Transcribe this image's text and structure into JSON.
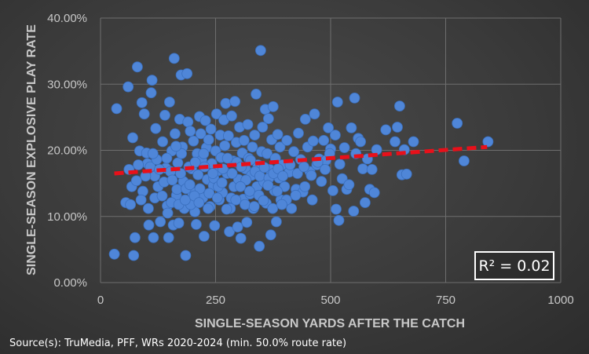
{
  "chart_data": {
    "type": "scatter",
    "title": "",
    "xlabel": "SINGLE-SEASON YARDS AFTER THE CATCH",
    "ylabel": "SINGLE-SEASON EXPLOSIVE PLAY RATE",
    "xlim": [
      0,
      1000
    ],
    "ylim": [
      0,
      0.4
    ],
    "x_ticks": [
      0,
      250,
      500,
      750,
      1000
    ],
    "x_tick_labels": [
      "0",
      "250",
      "500",
      "750",
      "1000"
    ],
    "y_ticks": [
      0,
      0.1,
      0.2,
      0.3,
      0.4
    ],
    "y_tick_labels": [
      "0.00%",
      "10.00%",
      "20.00%",
      "30.00%",
      "40.00%"
    ],
    "grid": true,
    "point_color": "#4f86d8",
    "trendline": {
      "x": [
        30,
        840
      ],
      "y": [
        0.165,
        0.205
      ],
      "color": "#e8101a",
      "style": "dashed"
    },
    "r_squared_label": "R² = 0.02",
    "series": [
      {
        "name": "WRs 2020-2024",
        "points": [
          [
            30,
            0.043
          ],
          [
            35,
            0.263
          ],
          [
            55,
            0.121
          ],
          [
            60,
            0.296
          ],
          [
            65,
            0.118
          ],
          [
            68,
            0.145
          ],
          [
            70,
            0.219
          ],
          [
            72,
            0.041
          ],
          [
            75,
            0.068
          ],
          [
            80,
            0.326
          ],
          [
            85,
            0.199
          ],
          [
            90,
            0.272
          ],
          [
            95,
            0.255
          ],
          [
            100,
            0.196
          ],
          [
            102,
            0.18
          ],
          [
            105,
            0.087
          ],
          [
            110,
            0.287
          ],
          [
            112,
            0.306
          ],
          [
            115,
            0.068
          ],
          [
            118,
            0.161
          ],
          [
            120,
            0.233
          ],
          [
            125,
            0.145
          ],
          [
            130,
            0.092
          ],
          [
            135,
            0.213
          ],
          [
            140,
            0.253
          ],
          [
            142,
            0.173
          ],
          [
            145,
            0.116
          ],
          [
            148,
            0.068
          ],
          [
            150,
            0.273
          ],
          [
            155,
            0.199
          ],
          [
            158,
            0.087
          ],
          [
            160,
            0.339
          ],
          [
            162,
            0.225
          ],
          [
            165,
            0.132
          ],
          [
            168,
            0.181
          ],
          [
            170,
            0.09
          ],
          [
            172,
            0.247
          ],
          [
            175,
            0.314
          ],
          [
            178,
            0.205
          ],
          [
            180,
            0.153
          ],
          [
            182,
            0.112
          ],
          [
            185,
            0.041
          ],
          [
            188,
            0.316
          ],
          [
            190,
            0.243
          ],
          [
            195,
            0.229
          ],
          [
            198,
            0.172
          ],
          [
            200,
            0.136
          ],
          [
            202,
            0.214
          ],
          [
            205,
            0.107
          ],
          [
            208,
            0.088
          ],
          [
            210,
            0.195
          ],
          [
            212,
            0.163
          ],
          [
            215,
            0.251
          ],
          [
            218,
            0.225
          ],
          [
            220,
            0.185
          ],
          [
            222,
            0.128
          ],
          [
            225,
            0.07
          ],
          [
            228,
            0.245
          ],
          [
            230,
            0.204
          ],
          [
            232,
            0.156
          ],
          [
            235,
            0.216
          ],
          [
            238,
            0.115
          ],
          [
            240,
            0.232
          ],
          [
            242,
            0.18
          ],
          [
            245,
            0.147
          ],
          [
            248,
            0.086
          ],
          [
            250,
            0.199
          ],
          [
            252,
            0.255
          ],
          [
            255,
            0.169
          ],
          [
            258,
            0.125
          ],
          [
            260,
            0.223
          ],
          [
            262,
            0.189
          ],
          [
            265,
            0.136
          ],
          [
            268,
            0.246
          ],
          [
            270,
            0.207
          ],
          [
            272,
            0.271
          ],
          [
            275,
            0.165
          ],
          [
            278,
            0.222
          ],
          [
            280,
            0.077
          ],
          [
            282,
            0.112
          ],
          [
            285,
            0.252
          ],
          [
            288,
            0.184
          ],
          [
            290,
            0.145
          ],
          [
            292,
            0.274
          ],
          [
            295,
            0.212
          ],
          [
            298,
            0.084
          ],
          [
            300,
            0.156
          ],
          [
            302,
            0.235
          ],
          [
            305,
            0.067
          ],
          [
            308,
            0.196
          ],
          [
            310,
            0.126
          ],
          [
            312,
            0.215
          ],
          [
            315,
            0.172
          ],
          [
            318,
            0.091
          ],
          [
            320,
            0.239
          ],
          [
            322,
            0.188
          ],
          [
            325,
            0.134
          ],
          [
            328,
            0.162
          ],
          [
            330,
            0.205
          ],
          [
            332,
            0.112
          ],
          [
            335,
            0.223
          ],
          [
            338,
            0.285
          ],
          [
            340,
            0.145
          ],
          [
            342,
            0.178
          ],
          [
            345,
            0.055
          ],
          [
            348,
            0.351
          ],
          [
            350,
            0.198
          ],
          [
            352,
            0.235
          ],
          [
            355,
            0.152
          ],
          [
            358,
            0.262
          ],
          [
            360,
            0.12
          ],
          [
            362,
            0.195
          ],
          [
            365,
            0.248
          ],
          [
            368,
            0.171
          ],
          [
            370,
            0.072
          ],
          [
            372,
            0.216
          ],
          [
            375,
            0.266
          ],
          [
            378,
            0.139
          ],
          [
            380,
            0.188
          ],
          [
            382,
            0.092
          ],
          [
            385,
            0.224
          ],
          [
            388,
            0.158
          ],
          [
            390,
            0.205
          ],
          [
            392,
            0.125
          ],
          [
            395,
            0.178
          ],
          [
            400,
            0.145
          ],
          [
            405,
            0.215
          ],
          [
            410,
            0.167
          ],
          [
            415,
            0.112
          ],
          [
            420,
            0.198
          ],
          [
            425,
            0.141
          ],
          [
            430,
            0.226
          ],
          [
            435,
            0.186
          ],
          [
            440,
            0.137
          ],
          [
            445,
            0.247
          ],
          [
            450,
            0.205
          ],
          [
            455,
            0.168
          ],
          [
            460,
            0.125
          ],
          [
            462,
            0.214
          ],
          [
            465,
            0.255
          ],
          [
            470,
            0.178
          ],
          [
            475,
            0.187
          ],
          [
            480,
            0.153
          ],
          [
            485,
            0.215
          ],
          [
            490,
            0.185
          ],
          [
            495,
            0.234
          ],
          [
            500,
            0.202
          ],
          [
            505,
            0.139
          ],
          [
            510,
            0.223
          ],
          [
            512,
            0.111
          ],
          [
            515,
            0.273
          ],
          [
            518,
            0.094
          ],
          [
            520,
            0.179
          ],
          [
            525,
            0.157
          ],
          [
            530,
            0.204
          ],
          [
            535,
            0.141
          ],
          [
            540,
            0.148
          ],
          [
            545,
            0.234
          ],
          [
            550,
            0.108
          ],
          [
            552,
            0.279
          ],
          [
            555,
            0.195
          ],
          [
            560,
            0.218
          ],
          [
            565,
            0.213
          ],
          [
            570,
            0.172
          ],
          [
            575,
            0.121
          ],
          [
            580,
            0.187
          ],
          [
            585,
            0.141
          ],
          [
            590,
            0.171
          ],
          [
            595,
            0.136
          ],
          [
            600,
            0.201
          ],
          [
            620,
            0.231
          ],
          [
            640,
            0.213
          ],
          [
            645,
            0.235
          ],
          [
            650,
            0.267
          ],
          [
            655,
            0.163
          ],
          [
            660,
            0.201
          ],
          [
            665,
            0.164
          ],
          [
            680,
            0.213
          ],
          [
            775,
            0.241
          ],
          [
            790,
            0.184
          ],
          [
            842,
            0.213
          ],
          [
            62,
            0.171
          ],
          [
            78,
            0.154
          ],
          [
            92,
            0.138
          ],
          [
            108,
            0.175
          ],
          [
            122,
            0.186
          ],
          [
            138,
            0.152
          ],
          [
            152,
            0.168
          ],
          [
            166,
            0.141
          ],
          [
            176,
            0.195
          ],
          [
            192,
            0.175
          ],
          [
            206,
            0.182
          ],
          [
            216,
            0.142
          ],
          [
            226,
            0.175
          ],
          [
            236,
            0.135
          ],
          [
            246,
            0.158
          ],
          [
            256,
            0.145
          ],
          [
            266,
            0.172
          ],
          [
            276,
            0.188
          ],
          [
            286,
            0.165
          ],
          [
            296,
            0.182
          ],
          [
            306,
            0.175
          ],
          [
            316,
            0.155
          ],
          [
            326,
            0.185
          ],
          [
            336,
            0.168
          ],
          [
            346,
            0.161
          ],
          [
            356,
            0.174
          ],
          [
            366,
            0.158
          ],
          [
            376,
            0.165
          ],
          [
            386,
            0.172
          ],
          [
            396,
            0.161
          ],
          [
            412,
            0.178
          ],
          [
            428,
            0.165
          ],
          [
            442,
            0.175
          ],
          [
            458,
            0.162
          ],
          [
            472,
            0.182
          ],
          [
            488,
            0.171
          ],
          [
            498,
            0.195
          ],
          [
            82,
            0.178
          ],
          [
            98,
            0.161
          ],
          [
            114,
            0.195
          ],
          [
            128,
            0.171
          ],
          [
            144,
            0.188
          ],
          [
            156,
            0.155
          ],
          [
            164,
            0.206
          ],
          [
            174,
            0.165
          ],
          [
            186,
            0.142
          ],
          [
            196,
            0.118
          ],
          [
            224,
            0.195
          ],
          [
            244,
            0.165
          ],
          [
            264,
            0.151
          ],
          [
            284,
            0.128
          ],
          [
            304,
            0.145
          ],
          [
            324,
            0.138
          ],
          [
            344,
            0.132
          ],
          [
            364,
            0.147
          ],
          [
            384,
            0.138
          ],
          [
            404,
            0.125
          ],
          [
            424,
            0.132
          ],
          [
            444,
            0.145
          ],
          [
            88,
            0.125
          ],
          [
            104,
            0.112
          ],
          [
            118,
            0.128
          ],
          [
            134,
            0.131
          ],
          [
            146,
            0.105
          ],
          [
            154,
            0.121
          ],
          [
            170,
            0.118
          ],
          [
            184,
            0.125
          ],
          [
            194,
            0.148
          ],
          [
            204,
            0.131
          ],
          [
            214,
            0.121
          ],
          [
            234,
            0.112
          ],
          [
            254,
            0.128
          ],
          [
            274,
            0.111
          ],
          [
            294,
            0.125
          ],
          [
            314,
            0.118
          ],
          [
            334,
            0.115
          ],
          [
            354,
            0.124
          ],
          [
            374,
            0.112
          ],
          [
            394,
            0.118
          ]
        ]
      }
    ]
  },
  "source_text": "Source(s): TruMedia, PFF, WRs 2020-2024 (min. 50.0% route rate)"
}
